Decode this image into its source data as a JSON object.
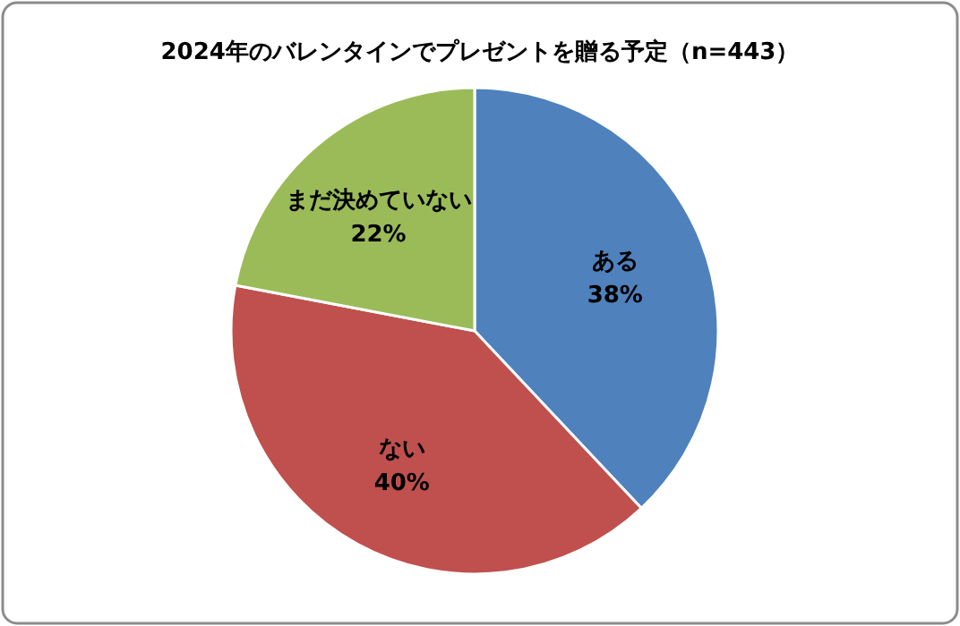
{
  "chart_data": {
    "type": "pie",
    "title": "2024年のバレンタインでプレゼントを贈る予定（n=443）",
    "categories": [
      "ある",
      "ない",
      "まだ決めていない"
    ],
    "values": [
      38,
      40,
      22
    ],
    "colors": [
      "#4f81bd",
      "#c0504d",
      "#9bbb59"
    ],
    "value_labels": [
      "38%",
      "40%",
      "22%"
    ],
    "legend": false
  }
}
